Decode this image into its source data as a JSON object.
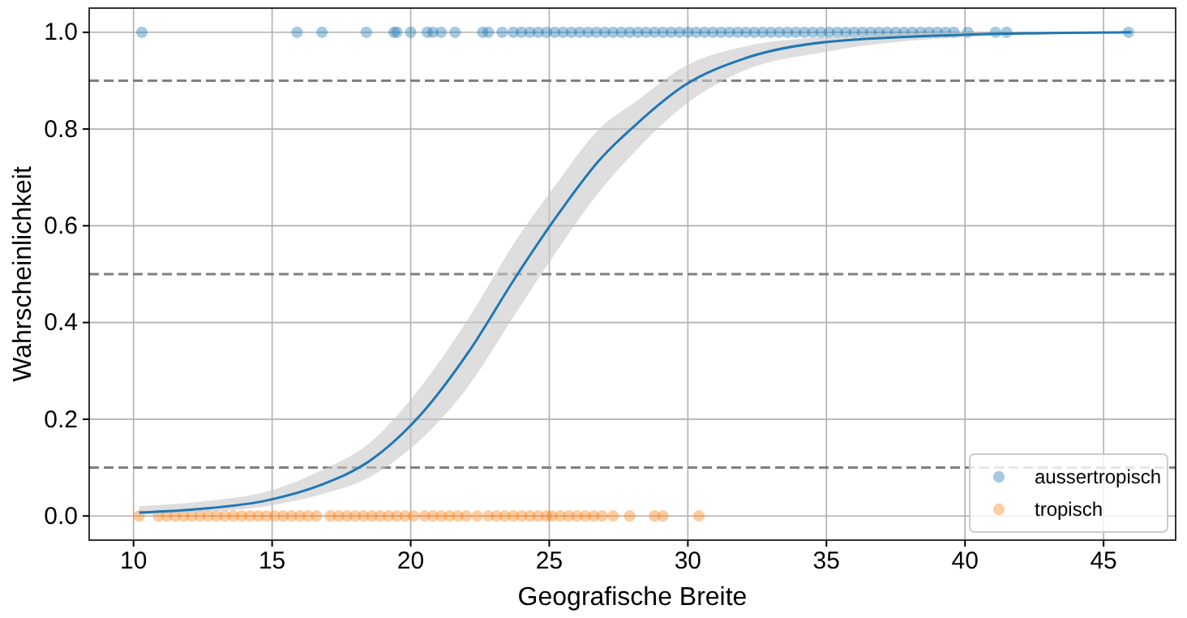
{
  "chart_data": {
    "type": "scatter",
    "xlabel": "Geografische Breite",
    "ylabel": "Wahrscheinlichkeit",
    "xlim": [
      8.4,
      47.6
    ],
    "ylim": [
      -0.05,
      1.05
    ],
    "xticks": [
      10,
      15,
      20,
      25,
      30,
      35,
      40,
      45
    ],
    "yticks": [
      {
        "value": 0,
        "label": "0.0"
      },
      0.2,
      0.4,
      0.6,
      0.8,
      {
        "value": 1,
        "label": "1.0"
      }
    ],
    "grid": true,
    "legend": "bottom right",
    "ref_lines": [
      {
        "axis": "y",
        "value": 0.1,
        "color": "#808080",
        "line_style": "dashed"
      },
      {
        "axis": "y",
        "value": 0.5,
        "color": "#808080",
        "line_style": "dashed"
      },
      {
        "axis": "y",
        "value": 0.9,
        "color": "#808080",
        "line_style": "dashed"
      }
    ],
    "series": [
      {
        "name": "aussertropisch",
        "marker": "circle",
        "color": "#1f77b4",
        "x": [
          10.3,
          15.9,
          16.8,
          18.4,
          19.4,
          19.5,
          20.0,
          20.6,
          20.8,
          21.1,
          21.6,
          22.6,
          22.8,
          23.3,
          23.7,
          24.0,
          24.3,
          24.6,
          24.9,
          25.2,
          25.5,
          25.8,
          26.1,
          26.4,
          26.7,
          27.0,
          27.3,
          27.6,
          27.9,
          28.2,
          28.5,
          28.8,
          29.1,
          29.4,
          29.7,
          30.0,
          30.3,
          30.6,
          30.9,
          31.2,
          31.5,
          31.8,
          32.1,
          32.4,
          32.7,
          33.0,
          33.3,
          33.6,
          33.9,
          34.2,
          34.5,
          34.8,
          35.1,
          35.4,
          35.7,
          36.0,
          36.3,
          36.6,
          36.9,
          37.2,
          37.5,
          37.8,
          38.1,
          38.4,
          38.7,
          39.0,
          39.3,
          39.6,
          40.1,
          41.1,
          41.5,
          45.9
        ],
        "values": [
          1,
          1,
          1,
          1,
          1,
          1,
          1,
          1,
          1,
          1,
          1,
          1,
          1,
          1,
          1,
          1,
          1,
          1,
          1,
          1,
          1,
          1,
          1,
          1,
          1,
          1,
          1,
          1,
          1,
          1,
          1,
          1,
          1,
          1,
          1,
          1,
          1,
          1,
          1,
          1,
          1,
          1,
          1,
          1,
          1,
          1,
          1,
          1,
          1,
          1,
          1,
          1,
          1,
          1,
          1,
          1,
          1,
          1,
          1,
          1,
          1,
          1,
          1,
          1,
          1,
          1,
          1,
          1,
          1,
          1,
          1,
          1
        ]
      },
      {
        "name": "tropisch",
        "marker": "circle",
        "color": "#ff7f0e",
        "x": [
          10.2,
          10.9,
          11.2,
          11.5,
          11.8,
          12.1,
          12.4,
          12.7,
          13.0,
          13.3,
          13.6,
          13.9,
          14.2,
          14.5,
          14.8,
          15.1,
          15.4,
          15.7,
          16.0,
          16.3,
          16.6,
          17.1,
          17.4,
          17.7,
          18.0,
          18.3,
          18.6,
          18.9,
          19.2,
          19.5,
          19.8,
          20.1,
          20.5,
          20.8,
          21.1,
          21.4,
          21.7,
          22.0,
          22.4,
          22.8,
          23.1,
          23.4,
          23.7,
          24.0,
          24.3,
          24.6,
          24.9,
          25.1,
          25.4,
          25.7,
          26.0,
          26.3,
          26.6,
          26.9,
          27.3,
          27.9,
          28.8,
          29.1,
          30.4
        ],
        "values": [
          0,
          0,
          0,
          0,
          0,
          0,
          0,
          0,
          0,
          0,
          0,
          0,
          0,
          0,
          0,
          0,
          0,
          0,
          0,
          0,
          0,
          0,
          0,
          0,
          0,
          0,
          0,
          0,
          0,
          0,
          0,
          0,
          0,
          0,
          0,
          0,
          0,
          0,
          0,
          0,
          0,
          0,
          0,
          0,
          0,
          0,
          0,
          0,
          0,
          0,
          0,
          0,
          0,
          0,
          0,
          0,
          0,
          0,
          0
        ]
      },
      {
        "type": "line",
        "color": "#1f77b4",
        "x": [
          10.2,
          12.5,
          14.8,
          16.8,
          18.5,
          20.4,
          22.1,
          23.8,
          25.3,
          26.8,
          28.2,
          29.9,
          32,
          35,
          40,
          46
        ],
        "values": [
          0.007,
          0.015,
          0.032,
          0.065,
          0.113,
          0.212,
          0.34,
          0.495,
          0.622,
          0.735,
          0.813,
          0.891,
          0.945,
          0.98,
          0.995,
          1.0
        ],
        "lower": [
          0.003,
          0.008,
          0.02,
          0.045,
          0.08,
          0.16,
          0.27,
          0.42,
          0.55,
          0.67,
          0.76,
          0.85,
          0.92,
          0.96,
          0.99,
          1.0
        ],
        "upper": [
          0.02,
          0.03,
          0.05,
          0.095,
          0.15,
          0.27,
          0.41,
          0.57,
          0.69,
          0.8,
          0.86,
          0.93,
          0.97,
          0.99,
          1.0,
          1.0
        ]
      }
    ]
  }
}
